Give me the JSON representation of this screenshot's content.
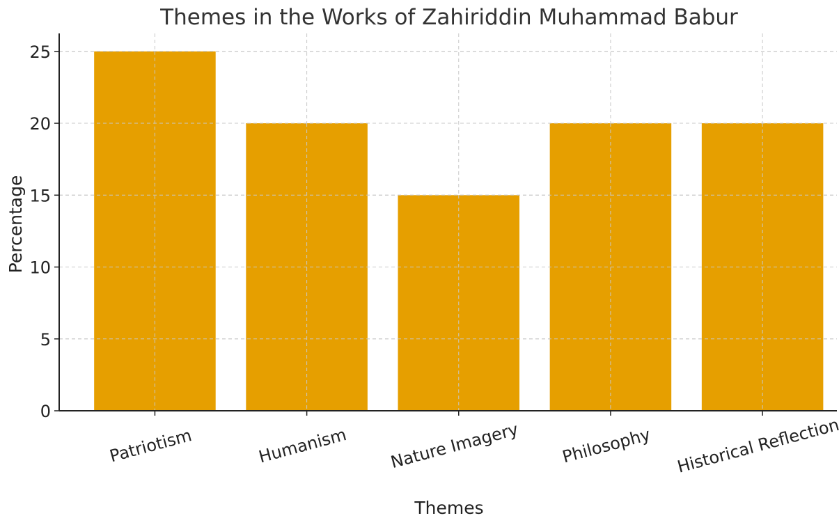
{
  "chart_data": {
    "type": "bar",
    "title": "Themes in the Works of Zahiriddin Muhammad Babur",
    "xlabel": "Themes",
    "ylabel": "Percentage",
    "categories": [
      "Patriotism",
      "Humanism",
      "Nature Imagery",
      "Philosophy",
      "Historical Reflection"
    ],
    "values": [
      25,
      20,
      15,
      20,
      20
    ],
    "ylim": [
      0,
      26.25
    ],
    "yticks": [
      0,
      5,
      10,
      15,
      20,
      25
    ],
    "grid": true,
    "bar_color": "#E69F00",
    "axis_color": "#222222",
    "grid_color": "#c8c8c8"
  }
}
